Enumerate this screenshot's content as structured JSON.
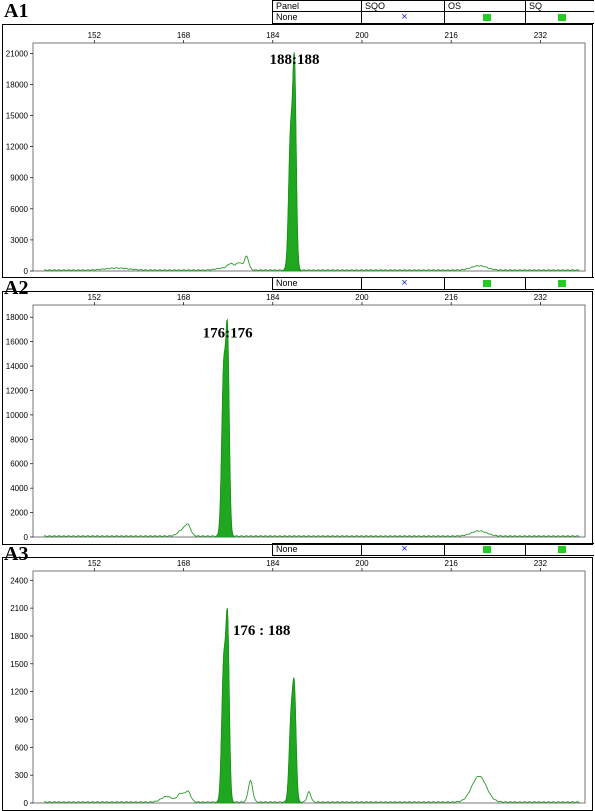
{
  "header_labels": {
    "panel": "Panel",
    "sqo": "SQO",
    "os": "OS",
    "sq": "SQ"
  },
  "panels": [
    {
      "id": "A1",
      "panel_value": "None",
      "sqo_mark": "×",
      "os_color": "#22cc22",
      "sq_color": "#22cc22",
      "show_header_titles": true,
      "peak_label": "188:188",
      "chart_data": {
        "type": "line",
        "xlim": [
          141,
          240
        ],
        "ylim": [
          0,
          22000
        ],
        "x_ticks": [
          "152",
          "168",
          "184",
          "200",
          "216",
          "232"
        ],
        "y_ticks": [
          "0",
          "3000",
          "6000",
          "9000",
          "12000",
          "15000",
          "18000",
          "21000"
        ],
        "baseline_bumps": [
          {
            "x": 156,
            "y": 200,
            "w": 2
          },
          {
            "x": 175,
            "y": 180,
            "w": 1.2
          },
          {
            "x": 176.5,
            "y": 550,
            "w": 0.6
          },
          {
            "x": 178,
            "y": 700,
            "w": 0.5
          },
          {
            "x": 179.3,
            "y": 1300,
            "w": 0.4
          },
          {
            "x": 221,
            "y": 420,
            "w": 1.4
          }
        ],
        "filled_peaks": [
          {
            "x": 187.2,
            "y": 13000,
            "w": 0.35
          },
          {
            "x": 187.9,
            "y": 19000,
            "w": 0.3
          }
        ]
      }
    },
    {
      "id": "A2",
      "panel_value": "None",
      "sqo_mark": "×",
      "os_color": "#22cc22",
      "sq_color": "#22cc22",
      "show_header_titles": false,
      "peak_label": "176:176",
      "chart_data": {
        "type": "line",
        "xlim": [
          141,
          240
        ],
        "ylim": [
          0,
          19000
        ],
        "x_ticks": [
          "152",
          "168",
          "184",
          "200",
          "216",
          "232"
        ],
        "y_ticks": [
          "0",
          "2000",
          "4000",
          "6000",
          "8000",
          "10000",
          "12000",
          "14000",
          "16000",
          "18000"
        ],
        "baseline_bumps": [
          {
            "x": 167.8,
            "y": 500,
            "w": 0.8
          },
          {
            "x": 168.8,
            "y": 750,
            "w": 0.5
          },
          {
            "x": 221,
            "y": 420,
            "w": 1.4
          }
        ],
        "filled_peaks": [
          {
            "x": 175.2,
            "y": 13500,
            "w": 0.35
          },
          {
            "x": 175.9,
            "y": 15500,
            "w": 0.3
          }
        ]
      }
    },
    {
      "id": "A3",
      "panel_value": "None",
      "sqo_mark": "×",
      "os_color": "#22cc22",
      "sq_color": "#22cc22",
      "show_header_titles": false,
      "peak_label": "176 : 188",
      "chart_data": {
        "type": "line",
        "xlim": [
          141,
          240
        ],
        "ylim": [
          0,
          2500
        ],
        "x_ticks": [
          "152",
          "168",
          "184",
          "200",
          "216",
          "232"
        ],
        "y_ticks": [
          "0",
          "300",
          "600",
          "900",
          "1200",
          "1500",
          "1800",
          "2100",
          "2400"
        ],
        "baseline_bumps": [
          {
            "x": 165,
            "y": 60,
            "w": 1
          },
          {
            "x": 167.5,
            "y": 90,
            "w": 0.6
          },
          {
            "x": 168.8,
            "y": 110,
            "w": 0.5
          },
          {
            "x": 180,
            "y": 230,
            "w": 0.4
          },
          {
            "x": 190.5,
            "y": 110,
            "w": 0.35
          },
          {
            "x": 221,
            "y": 280,
            "w": 1.3
          }
        ],
        "filled_peaks": [
          {
            "x": 175.2,
            "y": 1480,
            "w": 0.35
          },
          {
            "x": 175.9,
            "y": 1850,
            "w": 0.3
          },
          {
            "x": 187.3,
            "y": 900,
            "w": 0.35
          },
          {
            "x": 187.9,
            "y": 1070,
            "w": 0.3
          }
        ]
      }
    }
  ]
}
